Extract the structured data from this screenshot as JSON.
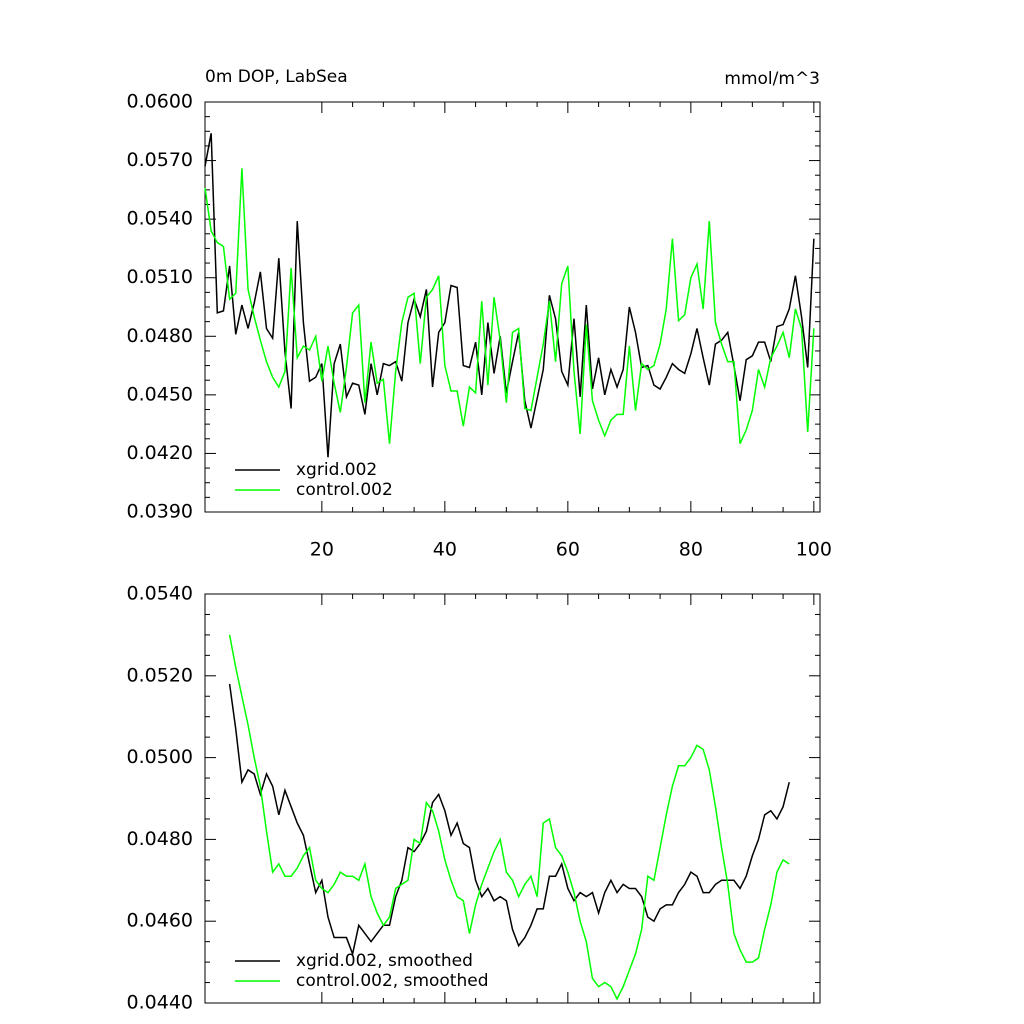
{
  "chart_data": [
    {
      "type": "line",
      "title": "0m DOP, LabSea",
      "unit_label": "mmol/m^3",
      "x": [
        1,
        2,
        3,
        4,
        5,
        6,
        7,
        8,
        9,
        10,
        11,
        12,
        13,
        14,
        15,
        16,
        17,
        18,
        19,
        20,
        21,
        22,
        23,
        24,
        25,
        26,
        27,
        28,
        29,
        30,
        31,
        32,
        33,
        34,
        35,
        36,
        37,
        38,
        39,
        40,
        41,
        42,
        43,
        44,
        45,
        46,
        47,
        48,
        49,
        50,
        51,
        52,
        53,
        54,
        55,
        56,
        57,
        58,
        59,
        60,
        61,
        62,
        63,
        64,
        65,
        66,
        67,
        68,
        69,
        70,
        71,
        72,
        73,
        74,
        75,
        76,
        77,
        78,
        79,
        80,
        81,
        82,
        83,
        84,
        85,
        86,
        87,
        88,
        89,
        90,
        91,
        92,
        93,
        94,
        95,
        96,
        97,
        98,
        99,
        100
      ],
      "series": [
        {
          "name": "xgrid.002",
          "color": "#000000",
          "values": [
            0.0567,
            0.0584,
            0.0492,
            0.0493,
            0.0516,
            0.0481,
            0.0496,
            0.0484,
            0.0497,
            0.0513,
            0.0484,
            0.0479,
            0.052,
            0.0472,
            0.0443,
            0.0539,
            0.0487,
            0.0457,
            0.0459,
            0.0466,
            0.0418,
            0.0466,
            0.0476,
            0.0449,
            0.0456,
            0.0455,
            0.044,
            0.0466,
            0.045,
            0.0466,
            0.0465,
            0.0467,
            0.0457,
            0.0487,
            0.0499,
            0.049,
            0.0504,
            0.0454,
            0.0482,
            0.0487,
            0.0506,
            0.0505,
            0.0465,
            0.0464,
            0.0477,
            0.045,
            0.0487,
            0.0461,
            0.048,
            0.0451,
            0.0467,
            0.0482,
            0.0447,
            0.0433,
            0.0448,
            0.0463,
            0.0501,
            0.0489,
            0.0462,
            0.0455,
            0.0489,
            0.0449,
            0.0496,
            0.0453,
            0.0469,
            0.045,
            0.0463,
            0.0454,
            0.0463,
            0.0495,
            0.0482,
            0.0464,
            0.0465,
            0.0455,
            0.0453,
            0.0459,
            0.0466,
            0.0463,
            0.0461,
            0.0471,
            0.0484,
            0.0469,
            0.0455,
            0.0476,
            0.0478,
            0.0482,
            0.0465,
            0.0447,
            0.0468,
            0.047,
            0.0477,
            0.0477,
            0.0467,
            0.0485,
            0.0486,
            0.0494,
            0.0511,
            0.049,
            0.0464,
            0.053
          ]
        },
        {
          "name": "control.002",
          "color": "#00ff00",
          "values": [
            0.0556,
            0.0534,
            0.0528,
            0.0526,
            0.0499,
            0.0502,
            0.0566,
            0.0504,
            0.049,
            0.0478,
            0.0467,
            0.0459,
            0.0454,
            0.0462,
            0.0515,
            0.0469,
            0.0475,
            0.0473,
            0.048,
            0.0457,
            0.0475,
            0.0456,
            0.0441,
            0.0464,
            0.0492,
            0.0496,
            0.0446,
            0.0477,
            0.0456,
            0.0458,
            0.0425,
            0.0462,
            0.0487,
            0.05,
            0.0502,
            0.0466,
            0.05,
            0.0504,
            0.0511,
            0.0465,
            0.0452,
            0.0452,
            0.0434,
            0.0454,
            0.0451,
            0.0498,
            0.0455,
            0.05,
            0.0478,
            0.0446,
            0.0482,
            0.0484,
            0.0443,
            0.0442,
            0.0459,
            0.0476,
            0.0498,
            0.0467,
            0.0507,
            0.0516,
            0.0462,
            0.043,
            0.0486,
            0.0447,
            0.0437,
            0.0429,
            0.0437,
            0.044,
            0.044,
            0.0475,
            0.0442,
            0.0466,
            0.0463,
            0.0465,
            0.0476,
            0.0494,
            0.053,
            0.0488,
            0.0491,
            0.051,
            0.0517,
            0.0494,
            0.0539,
            0.0487,
            0.0476,
            0.0467,
            0.0467,
            0.0425,
            0.0432,
            0.0442,
            0.0463,
            0.0454,
            0.0469,
            0.0475,
            0.0482,
            0.0469,
            0.0494,
            0.0484,
            0.0431,
            0.0484
          ]
        }
      ],
      "xlim": [
        1,
        101
      ],
      "xticks": [
        20,
        40,
        60,
        80,
        100
      ],
      "show_xtick_labels": true,
      "ylim": [
        0.039,
        0.06
      ],
      "yticks": [
        {
          "value": 0.039,
          "label": "0.0390"
        },
        {
          "value": 0.042,
          "label": "0.0420"
        },
        {
          "value": 0.045,
          "label": "0.0450"
        },
        {
          "value": 0.048,
          "label": "0.0480"
        },
        {
          "value": 0.051,
          "label": "0.0510"
        },
        {
          "value": 0.054,
          "label": "0.0540"
        },
        {
          "value": 0.057,
          "label": "0.0570"
        },
        {
          "value": 0.06,
          "label": "0.0600"
        }
      ],
      "grid": false,
      "legend": "lower left"
    },
    {
      "type": "line",
      "x": [
        5,
        6,
        7,
        8,
        9,
        10,
        11,
        12,
        13,
        14,
        15,
        16,
        17,
        18,
        19,
        20,
        21,
        22,
        23,
        24,
        25,
        26,
        27,
        28,
        29,
        30,
        31,
        32,
        33,
        34,
        35,
        36,
        37,
        38,
        39,
        40,
        41,
        42,
        43,
        44,
        45,
        46,
        47,
        48,
        49,
        50,
        51,
        52,
        53,
        54,
        55,
        56,
        57,
        58,
        59,
        60,
        61,
        62,
        63,
        64,
        65,
        66,
        67,
        68,
        69,
        70,
        71,
        72,
        73,
        74,
        75,
        76,
        77,
        78,
        79,
        80,
        81,
        82,
        83,
        84,
        85,
        86,
        87,
        88,
        89,
        90,
        91,
        92,
        93,
        94,
        95,
        96
      ],
      "series": [
        {
          "name": "xgrid.002, smoothed",
          "color": "#000000",
          "values": [
            0.0518,
            0.0507,
            0.0494,
            0.0497,
            0.0496,
            0.0491,
            0.0496,
            0.0493,
            0.0486,
            0.0492,
            0.0488,
            0.0484,
            0.0481,
            0.0474,
            0.0467,
            0.047,
            0.0461,
            0.0456,
            0.0456,
            0.0456,
            0.0452,
            0.0459,
            0.0457,
            0.0455,
            0.0457,
            0.0459,
            0.0459,
            0.0466,
            0.047,
            0.0478,
            0.0477,
            0.0479,
            0.0482,
            0.0489,
            0.0491,
            0.0487,
            0.0481,
            0.0484,
            0.0479,
            0.0478,
            0.047,
            0.0466,
            0.0468,
            0.0465,
            0.0466,
            0.0465,
            0.0458,
            0.0454,
            0.0456,
            0.0459,
            0.0463,
            0.0463,
            0.0471,
            0.0471,
            0.0474,
            0.0468,
            0.0465,
            0.0467,
            0.0466,
            0.0467,
            0.0462,
            0.0467,
            0.047,
            0.0467,
            0.0469,
            0.0468,
            0.0468,
            0.0466,
            0.0461,
            0.046,
            0.0463,
            0.0464,
            0.0464,
            0.0467,
            0.0469,
            0.0472,
            0.0471,
            0.0467,
            0.0467,
            0.0469,
            0.047,
            0.047,
            0.047,
            0.0468,
            0.0471,
            0.0476,
            0.048,
            0.0486,
            0.0487,
            0.0485,
            0.0488,
            0.0494
          ]
        },
        {
          "name": "control.002, smoothed",
          "color": "#00ff00",
          "values": [
            0.053,
            0.0522,
            0.0515,
            0.0508,
            0.05,
            0.0493,
            0.0482,
            0.0472,
            0.0474,
            0.0471,
            0.0471,
            0.0473,
            0.0476,
            0.0478,
            0.047,
            0.0468,
            0.0467,
            0.0469,
            0.0472,
            0.0471,
            0.0471,
            0.047,
            0.0474,
            0.0466,
            0.0462,
            0.0459,
            0.0461,
            0.0468,
            0.0469,
            0.047,
            0.048,
            0.0479,
            0.0489,
            0.0487,
            0.0482,
            0.0475,
            0.047,
            0.0466,
            0.0465,
            0.0457,
            0.0464,
            0.0469,
            0.0473,
            0.0477,
            0.048,
            0.0472,
            0.047,
            0.0466,
            0.0469,
            0.0471,
            0.0466,
            0.0484,
            0.0485,
            0.0478,
            0.0476,
            0.0472,
            0.0467,
            0.046,
            0.0455,
            0.0446,
            0.0444,
            0.0445,
            0.0444,
            0.0441,
            0.0444,
            0.0448,
            0.0452,
            0.0458,
            0.0471,
            0.047,
            0.0478,
            0.0486,
            0.0493,
            0.0498,
            0.0498,
            0.05,
            0.0503,
            0.0502,
            0.0497,
            0.0488,
            0.0478,
            0.0469,
            0.0457,
            0.0453,
            0.045,
            0.045,
            0.0451,
            0.0458,
            0.0464,
            0.0472,
            0.0475,
            0.0474
          ]
        }
      ],
      "xlim": [
        1,
        101
      ],
      "xticks": [
        20,
        40,
        60,
        80,
        100
      ],
      "show_xtick_labels": false,
      "ylim": [
        0.044,
        0.054
      ],
      "yticks": [
        {
          "value": 0.044,
          "label": "0.0440"
        },
        {
          "value": 0.046,
          "label": "0.0460"
        },
        {
          "value": 0.048,
          "label": "0.0480"
        },
        {
          "value": 0.05,
          "label": "0.0500"
        },
        {
          "value": 0.052,
          "label": "0.0520"
        },
        {
          "value": 0.054,
          "label": "0.0540"
        }
      ],
      "grid": false,
      "legend": "lower left"
    }
  ]
}
